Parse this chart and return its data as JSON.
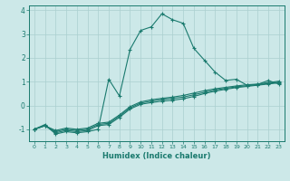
{
  "xlabel": "Humidex (Indice chaleur)",
  "xlim": [
    -0.5,
    23.5
  ],
  "ylim": [
    -1.5,
    4.2
  ],
  "yticks": [
    -1,
    0,
    1,
    2,
    3,
    4
  ],
  "xticks": [
    0,
    1,
    2,
    3,
    4,
    5,
    6,
    7,
    8,
    9,
    10,
    11,
    12,
    13,
    14,
    15,
    16,
    17,
    18,
    19,
    20,
    21,
    22,
    23
  ],
  "bg_color": "#cce8e8",
  "line_color": "#1a7a6e",
  "grid_color": "#aacfcf",
  "lines": [
    {
      "x": [
        0,
        1,
        2,
        3,
        4,
        5,
        6,
        7,
        8,
        9,
        10,
        11,
        12,
        13,
        14,
        15,
        16,
        17,
        18,
        19,
        20,
        21,
        22,
        23
      ],
      "y": [
        -1.0,
        -0.8,
        -1.2,
        -1.1,
        -1.15,
        -1.1,
        -1.0,
        1.1,
        0.4,
        2.35,
        3.15,
        3.3,
        3.85,
        3.6,
        3.45,
        2.4,
        1.9,
        1.4,
        1.05,
        1.1,
        0.85,
        0.88,
        1.05,
        0.9
      ]
    },
    {
      "x": [
        0,
        1,
        2,
        3,
        4,
        5,
        6,
        7,
        8,
        9,
        10,
        11,
        12,
        13,
        14,
        15,
        16,
        17,
        18,
        19,
        20,
        21,
        22,
        23
      ],
      "y": [
        -1.0,
        -0.85,
        -1.15,
        -1.05,
        -1.1,
        -1.05,
        -0.85,
        -0.8,
        -0.5,
        -0.15,
        0.05,
        0.12,
        0.18,
        0.22,
        0.28,
        0.38,
        0.5,
        0.6,
        0.68,
        0.75,
        0.8,
        0.85,
        0.9,
        0.95
      ]
    },
    {
      "x": [
        0,
        1,
        2,
        3,
        4,
        5,
        6,
        7,
        8,
        9,
        10,
        11,
        12,
        13,
        14,
        15,
        16,
        17,
        18,
        19,
        20,
        21,
        22,
        23
      ],
      "y": [
        -1.0,
        -0.85,
        -1.1,
        -1.0,
        -1.05,
        -1.0,
        -0.8,
        -0.75,
        -0.45,
        -0.1,
        0.1,
        0.18,
        0.25,
        0.3,
        0.35,
        0.45,
        0.55,
        0.65,
        0.72,
        0.78,
        0.83,
        0.87,
        0.93,
        0.98
      ]
    },
    {
      "x": [
        0,
        1,
        2,
        3,
        4,
        5,
        6,
        7,
        8,
        9,
        10,
        11,
        12,
        13,
        14,
        15,
        16,
        17,
        18,
        19,
        20,
        21,
        22,
        23
      ],
      "y": [
        -1.0,
        -0.85,
        -1.05,
        -0.95,
        -1.0,
        -0.95,
        -0.75,
        -0.7,
        -0.4,
        -0.05,
        0.15,
        0.24,
        0.3,
        0.35,
        0.42,
        0.52,
        0.62,
        0.7,
        0.76,
        0.82,
        0.87,
        0.9,
        0.96,
        1.02
      ]
    }
  ]
}
